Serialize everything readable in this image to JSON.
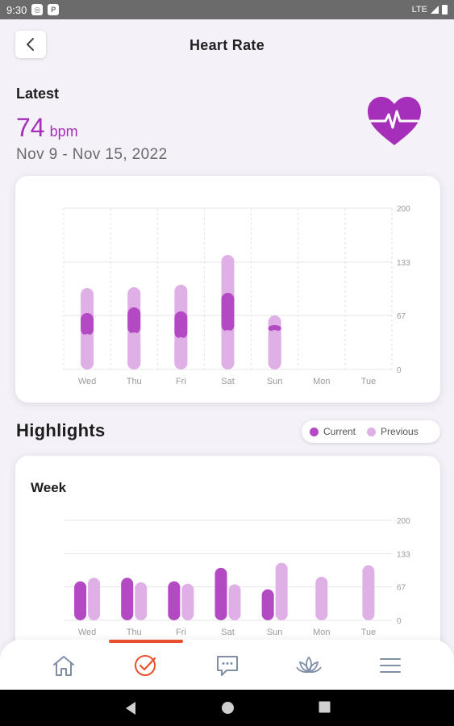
{
  "status_bar": {
    "time": "9:30",
    "network": "LTE"
  },
  "header": {
    "title": "Heart Rate"
  },
  "latest": {
    "label": "Latest",
    "value": "74",
    "unit": "bpm",
    "date_range": "Nov 9 - Nov 15, 2022"
  },
  "highlights": {
    "title": "Highlights",
    "legend": {
      "current": "Current",
      "previous": "Previous"
    },
    "week_label": "Week"
  },
  "colors": {
    "accent": "#a52fb8",
    "current": "#b34ac4",
    "previous": "#dfb0e6",
    "nav_active": "#e8502d",
    "nav_inactive": "#7f8fa6"
  },
  "nav": {
    "items": [
      {
        "icon": "home-icon",
        "active": false
      },
      {
        "icon": "check-circle-icon",
        "active": true
      },
      {
        "icon": "chat-icon",
        "active": false
      },
      {
        "icon": "lotus-icon",
        "active": false
      },
      {
        "icon": "menu-icon",
        "active": false
      }
    ]
  },
  "chart_data": [
    {
      "type": "bar",
      "subtype": "range",
      "categories": [
        "Wed",
        "Thu",
        "Fri",
        "Sat",
        "Sun",
        "Mon",
        "Tue"
      ],
      "y_ticks": [
        "200",
        "133",
        "67",
        "0"
      ],
      "ylim": [
        0,
        200
      ],
      "grid": true,
      "series": [
        {
          "name": "Previous",
          "ranges": [
            [
              0,
              101
            ],
            [
              0,
              102
            ],
            [
              0,
              105
            ],
            [
              0,
              142
            ],
            [
              0,
              67
            ],
            null,
            null
          ]
        },
        {
          "name": "Current",
          "ranges": [
            [
              42,
              70
            ],
            [
              44,
              77
            ],
            [
              38,
              72
            ],
            [
              47,
              95
            ],
            [
              47,
              55
            ],
            null,
            null
          ]
        }
      ]
    },
    {
      "type": "bar",
      "title": "Week",
      "categories": [
        "Wed",
        "Thu",
        "Fri",
        "Sat",
        "Sun",
        "Mon",
        "Tue"
      ],
      "y_ticks": [
        "200",
        "133",
        "67",
        "0"
      ],
      "ylim": [
        0,
        200
      ],
      "grid": true,
      "series": [
        {
          "name": "Current",
          "values": [
            78,
            85,
            78,
            105,
            62,
            null,
            null
          ]
        },
        {
          "name": "Previous",
          "values": [
            85,
            76,
            73,
            72,
            115,
            87,
            110
          ]
        }
      ]
    }
  ]
}
